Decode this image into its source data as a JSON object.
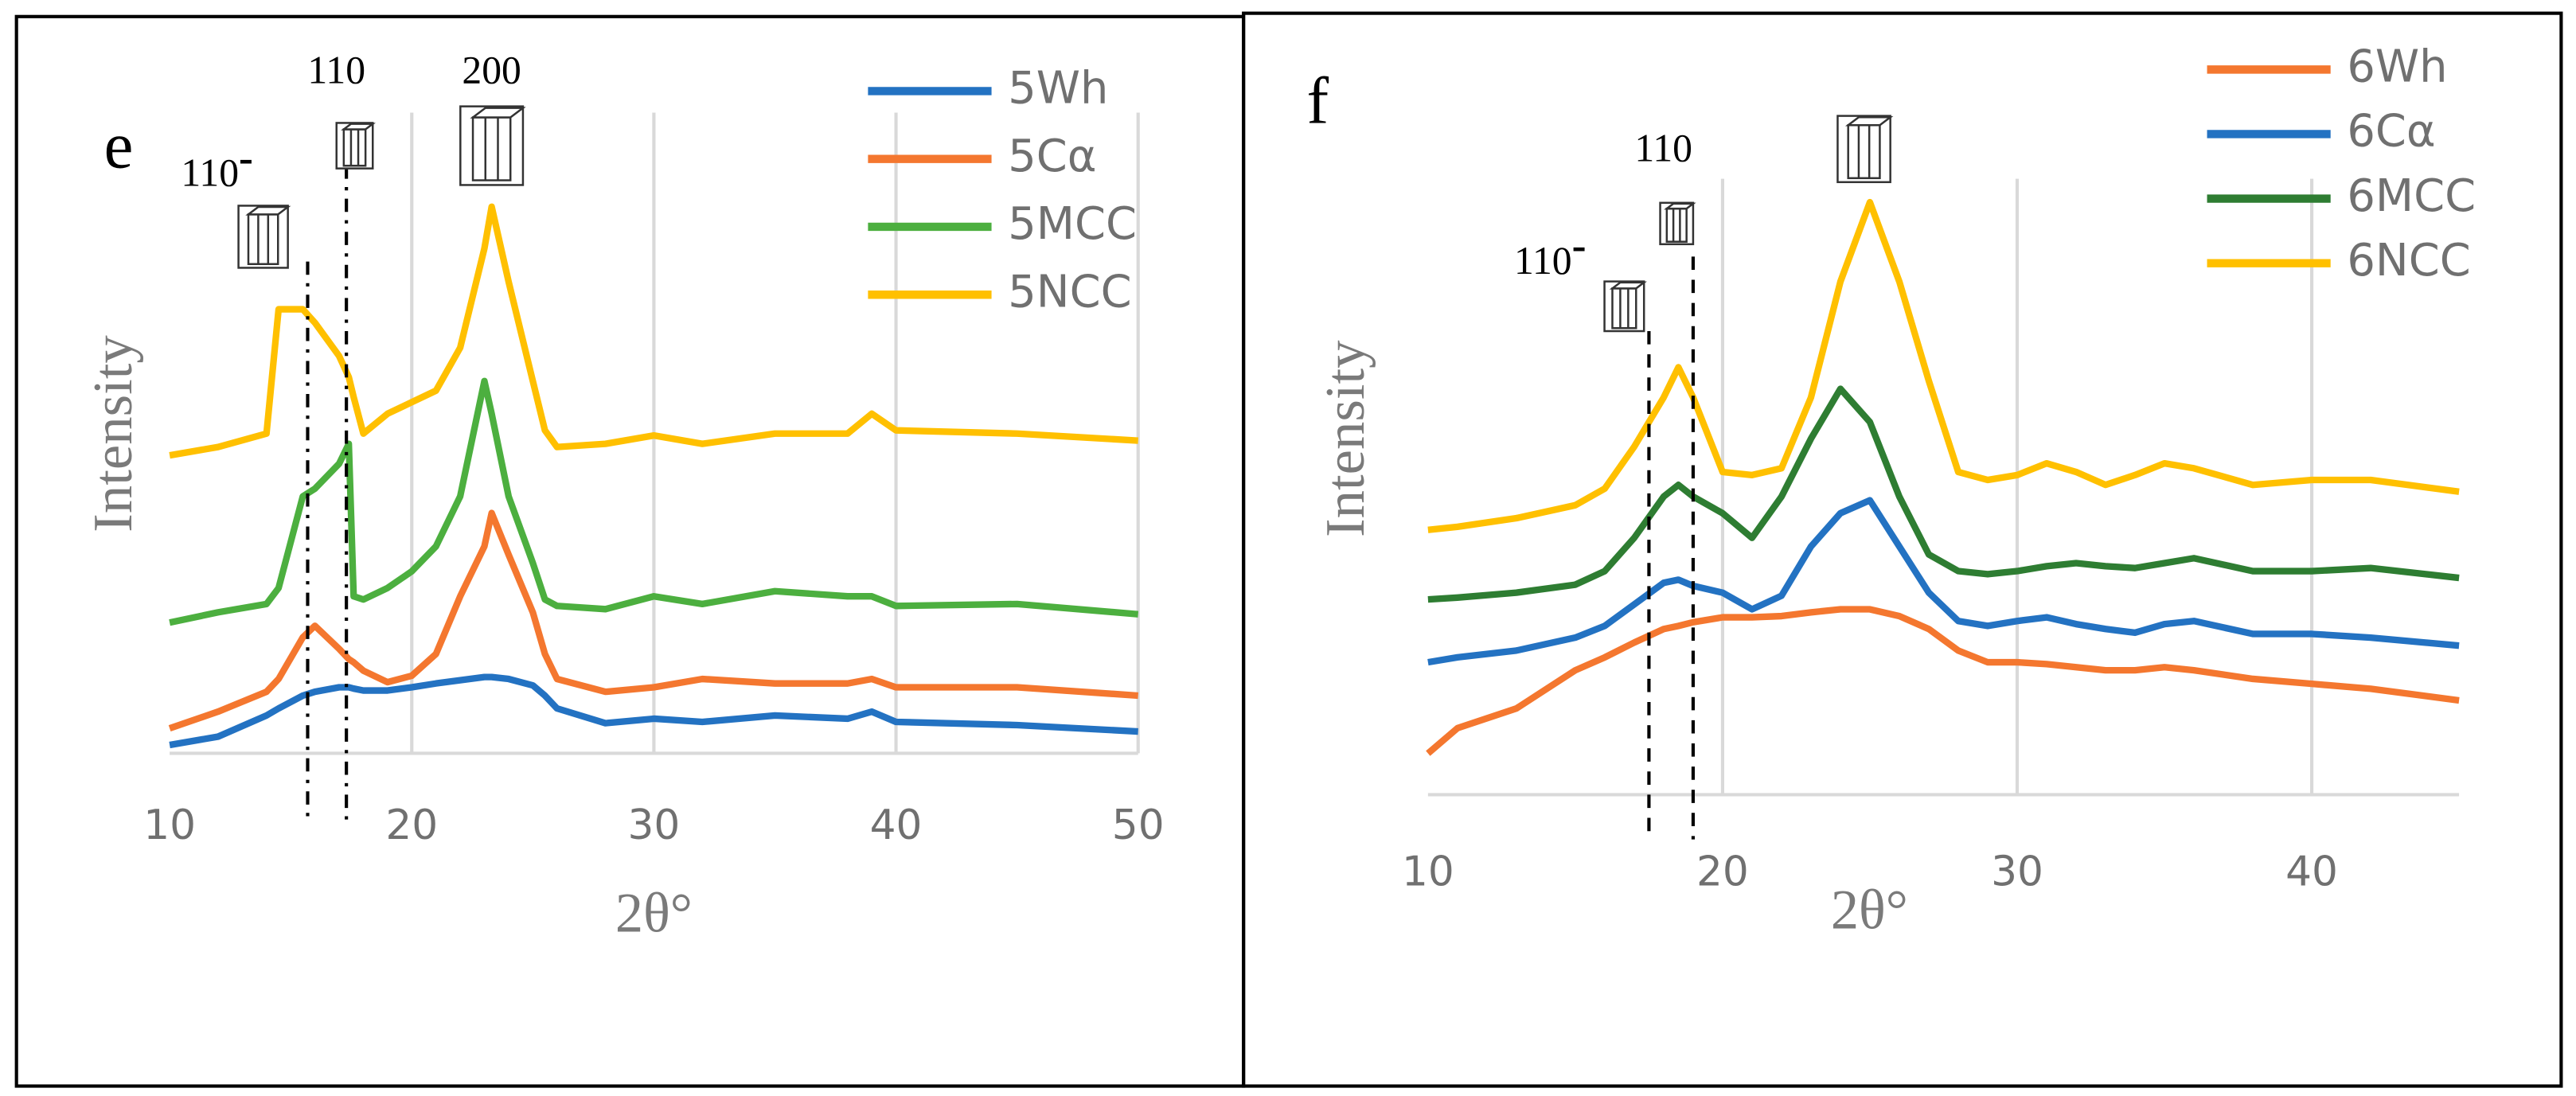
{
  "chart_data": [
    {
      "type": "line",
      "panel": "e",
      "xlabel": "2θ°",
      "ylabel": "Intensity",
      "xlim": [
        10,
        50
      ],
      "xticks": [
        10,
        20,
        30,
        40,
        50
      ],
      "ylim": [
        0,
        100
      ],
      "grid": true,
      "legend": "upper right",
      "x": [
        10,
        12,
        14,
        14.5,
        15.5,
        16,
        17,
        17.4,
        17.6,
        18,
        19,
        20,
        21,
        22,
        23,
        23.3,
        24,
        25,
        25.5,
        26,
        28,
        30,
        32,
        35,
        38,
        39,
        40,
        45,
        50
      ],
      "series": [
        {
          "name": "5Wh",
          "color": "#2372c2",
          "values": [
            1.3,
            2.6,
            5.9,
            7.0,
            9.0,
            9.6,
            10.3,
            10.3,
            10.1,
            9.8,
            9.8,
            10.3,
            10.9,
            11.4,
            11.9,
            11.9,
            11.6,
            10.6,
            9.0,
            7.0,
            4.7,
            5.4,
            4.9,
            5.9,
            5.4,
            6.5,
            4.9,
            4.4,
            3.4
          ]
        },
        {
          "name": "5Cα",
          "color": "#f4772f",
          "values": [
            3.9,
            6.5,
            9.6,
            11.6,
            18.1,
            19.9,
            16.3,
            14.7,
            14.2,
            12.9,
            11.1,
            12.1,
            15.5,
            24.5,
            32.3,
            37.5,
            31.0,
            22.0,
            15.5,
            11.6,
            9.6,
            10.3,
            11.6,
            10.9,
            10.9,
            11.6,
            10.3,
            10.3,
            9.0
          ]
        },
        {
          "name": "5MCC",
          "color": "#4caf3f",
          "values": [
            20.4,
            22.0,
            23.3,
            25.8,
            40.1,
            41.3,
            45.2,
            48.3,
            24.5,
            24.0,
            25.8,
            28.4,
            32.3,
            40.1,
            58.1,
            53.0,
            40.1,
            29.7,
            24.0,
            23.0,
            22.5,
            24.5,
            23.3,
            25.3,
            24.5,
            24.5,
            23.0,
            23.3,
            21.7
          ]
        },
        {
          "name": "5NCC",
          "color": "#ffc000",
          "values": [
            46.5,
            47.8,
            49.9,
            69.3,
            69.3,
            67.2,
            62.0,
            58.7,
            55.6,
            49.9,
            53.0,
            54.8,
            56.6,
            63.3,
            78.8,
            85.3,
            73.6,
            58.1,
            50.4,
            47.8,
            48.3,
            49.6,
            48.3,
            49.9,
            49.9,
            53.0,
            50.4,
            49.9,
            48.8
          ]
        }
      ],
      "annotations": [
        {
          "label": "110",
          "superscript": "-",
          "x": 15.7,
          "line": true
        },
        {
          "label": "110",
          "x": 17.3,
          "line": true
        },
        {
          "label": "200",
          "x": 23.3
        }
      ]
    },
    {
      "type": "line",
      "panel": "f",
      "xlabel": "2θ°",
      "ylabel": "Intensity",
      "xlim": [
        10,
        45
      ],
      "xticks": [
        10,
        20,
        30,
        40
      ],
      "ylim": [
        0,
        100
      ],
      "grid": true,
      "legend": "upper right",
      "x": [
        10,
        11,
        13,
        15,
        16,
        17,
        18,
        18.5,
        19,
        20,
        21,
        22,
        23,
        24,
        25,
        26,
        27,
        28,
        29,
        30,
        31,
        32,
        33,
        34,
        35,
        36,
        38,
        40,
        42,
        45
      ],
      "series": [
        {
          "name": "6Wh",
          "color": "#f4772f",
          "values": [
            6.7,
            10.8,
            14.0,
            20.2,
            22.3,
            24.7,
            26.9,
            27.4,
            28.0,
            28.8,
            28.8,
            29.0,
            29.6,
            30.1,
            30.1,
            29.0,
            26.9,
            23.4,
            21.5,
            21.5,
            21.2,
            20.7,
            20.2,
            20.2,
            20.7,
            20.2,
            18.8,
            18.0,
            17.2,
            15.3
          ]
        },
        {
          "name": "6Cα",
          "color": "#2372c2",
          "values": [
            21.5,
            22.3,
            23.4,
            25.5,
            27.4,
            30.9,
            34.4,
            34.9,
            33.9,
            32.8,
            30.1,
            32.3,
            40.3,
            45.7,
            47.8,
            40.3,
            32.8,
            28.2,
            27.4,
            28.2,
            28.8,
            27.7,
            26.9,
            26.3,
            27.7,
            28.2,
            26.1,
            26.1,
            25.5,
            24.2
          ]
        },
        {
          "name": "6MCC",
          "color": "#2e7d32",
          "values": [
            31.7,
            32.0,
            32.8,
            34.1,
            36.3,
            41.7,
            48.4,
            50.3,
            48.4,
            45.7,
            41.7,
            48.4,
            57.8,
            65.9,
            60.5,
            48.4,
            39.0,
            36.3,
            35.8,
            36.3,
            37.1,
            37.6,
            37.1,
            36.8,
            37.6,
            38.4,
            36.3,
            36.3,
            36.8,
            35.2
          ]
        },
        {
          "name": "6NCC",
          "color": "#ffc000",
          "values": [
            43.0,
            43.5,
            44.9,
            47.0,
            49.7,
            56.5,
            64.5,
            69.4,
            64.5,
            52.4,
            51.9,
            53.0,
            64.5,
            83.3,
            96.2,
            83.3,
            67.2,
            52.4,
            51.1,
            51.9,
            53.8,
            52.4,
            50.3,
            51.9,
            53.8,
            53.0,
            50.3,
            51.1,
            51.1,
            49.2
          ]
        }
      ],
      "annotations": [
        {
          "label": "110",
          "superscript": "-",
          "x": 17.5,
          "line": true
        },
        {
          "label": "110",
          "x": 19,
          "line": true
        },
        {
          "x": 24.8
        }
      ]
    }
  ]
}
